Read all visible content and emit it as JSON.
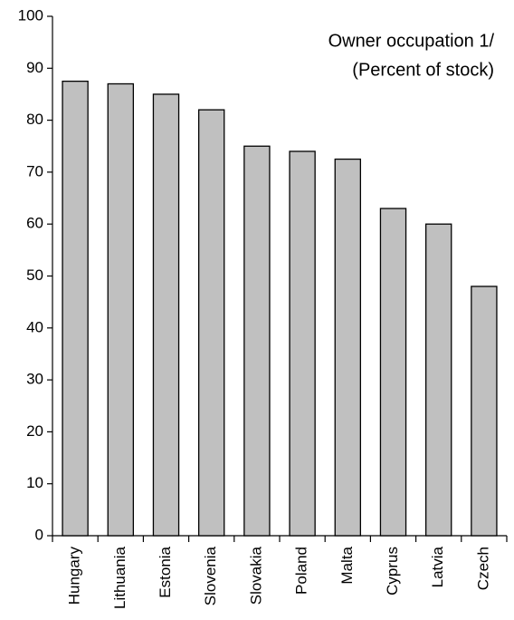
{
  "chart_data": {
    "type": "bar",
    "title": "Owner occupation 1/",
    "subtitle": "(Percent of stock)",
    "categories": [
      "Hungary",
      "Lithuania",
      "Estonia",
      "Slovenia",
      "Slovakia",
      "Poland",
      "Malta",
      "Cyprus",
      "Latvia",
      "Czech"
    ],
    "values": [
      87.5,
      87,
      85,
      82,
      75,
      74,
      72.5,
      63,
      60,
      48
    ],
    "color": "#c0c0c0",
    "ylim": [
      0,
      100
    ],
    "yticks": [
      0,
      10,
      20,
      30,
      40,
      50,
      60,
      70,
      80,
      90,
      100
    ],
    "grid": false
  }
}
